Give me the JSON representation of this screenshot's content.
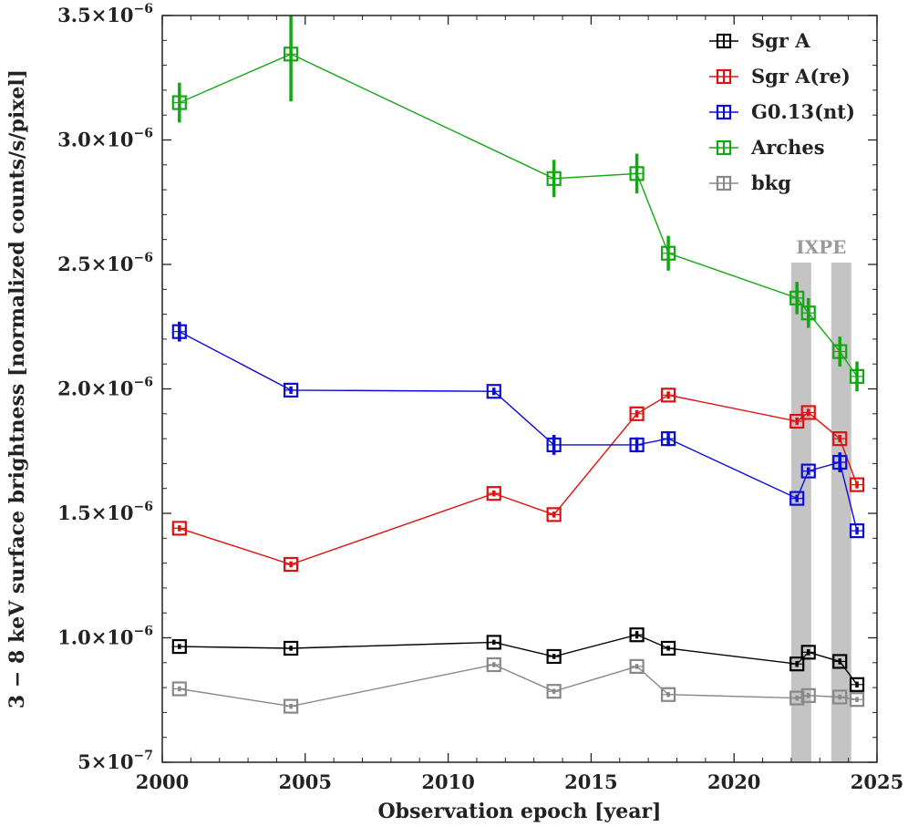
{
  "chart_data": {
    "type": "line",
    "xlabel": "Observation epoch [year]",
    "ylabel": "3 − 8 keV surface brightness [normalized counts/s/pixel]",
    "xlim": [
      2000,
      2025
    ],
    "ylim": [
      5e-07,
      3.5e-06
    ],
    "x_ticks": [
      2000,
      2005,
      2010,
      2015,
      2020,
      2025
    ],
    "x_tick_labels": [
      "2000",
      "2005",
      "2010",
      "2015",
      "2020",
      "2025"
    ],
    "y_ticks": [
      5e-07,
      1e-06,
      1.5e-06,
      2e-06,
      2.5e-06,
      3e-06,
      3.5e-06
    ],
    "y_tick_labels": [
      {
        "mant": "5",
        "exp": "−7"
      },
      {
        "mant": "1.0",
        "exp": "−6"
      },
      {
        "mant": "1.5",
        "exp": "−6"
      },
      {
        "mant": "2.0",
        "exp": "−6"
      },
      {
        "mant": "2.5",
        "exp": "−6"
      },
      {
        "mant": "3.0",
        "exp": "−6"
      },
      {
        "mant": "3.5",
        "exp": "−6"
      }
    ],
    "legend_position": "top-right",
    "bands": [
      {
        "x0": 2022.0,
        "x1": 2022.7
      },
      {
        "x0": 2023.4,
        "x1": 2024.1
      }
    ],
    "band_label": "IXPE",
    "series": [
      {
        "name": "Sgr A",
        "color": "#000000",
        "points": [
          {
            "x": 2000.6,
            "y": 9.65e-07,
            "err": 1e-08
          },
          {
            "x": 2004.5,
            "y": 9.58e-07,
            "err": 1e-08
          },
          {
            "x": 2011.6,
            "y": 9.82e-07,
            "err": 1e-08
          },
          {
            "x": 2013.7,
            "y": 9.25e-07,
            "err": 1e-08
          },
          {
            "x": 2016.6,
            "y": 1.012e-06,
            "err": 1.5e-08
          },
          {
            "x": 2017.7,
            "y": 9.58e-07,
            "err": 1e-08
          },
          {
            "x": 2022.2,
            "y": 8.95e-07,
            "err": 1.2e-08
          },
          {
            "x": 2022.6,
            "y": 9.42e-07,
            "err": 1.2e-08
          },
          {
            "x": 2023.7,
            "y": 9.05e-07,
            "err": 1.2e-08
          },
          {
            "x": 2024.3,
            "y": 8.12e-07,
            "err": 1.2e-08
          }
        ]
      },
      {
        "name": "Sgr A(re)",
        "color": "#e01010",
        "points": [
          {
            "x": 2000.6,
            "y": 1.44e-06,
            "err": 1.2e-08
          },
          {
            "x": 2004.5,
            "y": 1.295e-06,
            "err": 1.2e-08
          },
          {
            "x": 2011.6,
            "y": 1.58e-06,
            "err": 1.2e-08
          },
          {
            "x": 2013.7,
            "y": 1.495e-06,
            "err": 1.2e-08
          },
          {
            "x": 2016.6,
            "y": 1.9e-06,
            "err": 1.5e-08
          },
          {
            "x": 2017.7,
            "y": 1.975e-06,
            "err": 1.5e-08
          },
          {
            "x": 2022.2,
            "y": 1.87e-06,
            "err": 1.5e-08
          },
          {
            "x": 2022.6,
            "y": 1.905e-06,
            "err": 1.5e-08
          },
          {
            "x": 2023.7,
            "y": 1.8e-06,
            "err": 1.5e-08
          },
          {
            "x": 2024.3,
            "y": 1.615e-06,
            "err": 1.5e-08
          }
        ]
      },
      {
        "name": "G0.13(nt)",
        "color": "#0b0bd6",
        "points": [
          {
            "x": 2000.6,
            "y": 2.23e-06,
            "err": 4e-08
          },
          {
            "x": 2004.5,
            "y": 1.995e-06,
            "err": 1.5e-08
          },
          {
            "x": 2011.6,
            "y": 1.99e-06,
            "err": 1.5e-08
          },
          {
            "x": 2013.7,
            "y": 1.775e-06,
            "err": 4e-08
          },
          {
            "x": 2016.6,
            "y": 1.775e-06,
            "err": 3e-08
          },
          {
            "x": 2017.7,
            "y": 1.8e-06,
            "err": 3e-08
          },
          {
            "x": 2022.2,
            "y": 1.56e-06,
            "err": 1.5e-08
          },
          {
            "x": 2022.6,
            "y": 1.67e-06,
            "err": 1.5e-08
          },
          {
            "x": 2023.7,
            "y": 1.705e-06,
            "err": 4e-08
          },
          {
            "x": 2024.3,
            "y": 1.43e-06,
            "err": 1.5e-08
          }
        ]
      },
      {
        "name": "Arches",
        "color": "#12a812",
        "points": [
          {
            "x": 2000.6,
            "y": 3.15e-06,
            "err": 8e-08
          },
          {
            "x": 2004.5,
            "y": 3.345e-06,
            "err": 1.9e-07
          },
          {
            "x": 2011.6,
            "y": null,
            "err": null
          },
          {
            "x": 2013.7,
            "y": 2.845e-06,
            "err": 7.5e-08
          },
          {
            "x": 2016.6,
            "y": 2.865e-06,
            "err": 8e-08
          },
          {
            "x": 2017.7,
            "y": 2.545e-06,
            "err": 7e-08
          },
          {
            "x": 2022.2,
            "y": 2.365e-06,
            "err": 6.5e-08
          },
          {
            "x": 2022.6,
            "y": 2.305e-06,
            "err": 6e-08
          },
          {
            "x": 2023.7,
            "y": 2.15e-06,
            "err": 6e-08
          },
          {
            "x": 2024.3,
            "y": 2.05e-06,
            "err": 6e-08
          }
        ]
      },
      {
        "name": "bkg",
        "color": "#888888",
        "points": [
          {
            "x": 2000.6,
            "y": 7.95e-07,
            "err": 1e-08
          },
          {
            "x": 2004.5,
            "y": 7.25e-07,
            "err": 1e-08
          },
          {
            "x": 2011.6,
            "y": 8.92e-07,
            "err": 1e-08
          },
          {
            "x": 2013.7,
            "y": 7.85e-07,
            "err": 1e-08
          },
          {
            "x": 2016.6,
            "y": 8.85e-07,
            "err": 1e-08
          },
          {
            "x": 2017.7,
            "y": 7.72e-07,
            "err": 1e-08
          },
          {
            "x": 2022.2,
            "y": 7.58e-07,
            "err": 1e-08
          },
          {
            "x": 2022.6,
            "y": 7.68e-07,
            "err": 1e-08
          },
          {
            "x": 2023.7,
            "y": 7.62e-07,
            "err": 1e-08
          },
          {
            "x": 2024.3,
            "y": 7.52e-07,
            "err": 1e-08
          }
        ]
      }
    ]
  }
}
